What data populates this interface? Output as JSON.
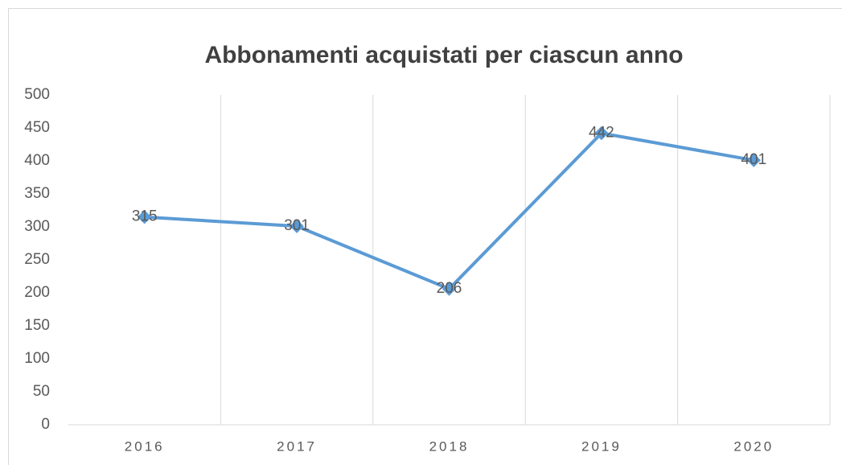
{
  "chart_data": {
    "type": "line",
    "title": "Abbonamenti acquistati per ciascun anno",
    "categories": [
      "2016",
      "2017",
      "2018",
      "2019",
      "2020"
    ],
    "values": [
      315,
      301,
      206,
      442,
      401
    ],
    "color": "#5b9bd5",
    "ylim": [
      0,
      500
    ],
    "yticks": [
      0,
      50,
      100,
      150,
      200,
      250,
      300,
      350,
      400,
      450,
      500
    ],
    "grid": "vertical",
    "marker": "diamond",
    "data_labels": true
  }
}
